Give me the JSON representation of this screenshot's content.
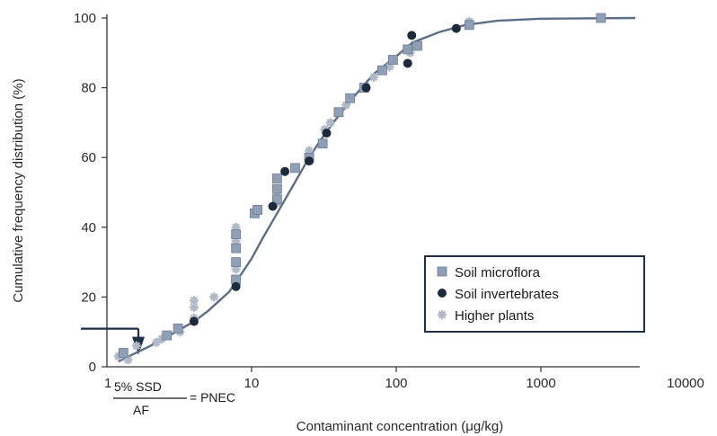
{
  "chart_data": {
    "type": "scatter",
    "xlabel": "Contaminant concentration (μg/kg)",
    "ylabel": "Cumulative frequency distribution (%)",
    "x_scale": "log",
    "xlim": [
      1,
      10000
    ],
    "ylim": [
      0,
      100
    ],
    "x_ticks": [
      {
        "value": 1,
        "label": "1"
      },
      {
        "value": 10,
        "label": "10"
      },
      {
        "value": 100,
        "label": "100"
      },
      {
        "value": 1000,
        "label": "1000"
      },
      {
        "value": 10000,
        "label": "10000"
      }
    ],
    "y_ticks": [
      {
        "value": 0,
        "label": "0"
      },
      {
        "value": 20,
        "label": "20"
      },
      {
        "value": 40,
        "label": "40"
      },
      {
        "value": 60,
        "label": "60"
      },
      {
        "value": 80,
        "label": "80"
      },
      {
        "value": 100,
        "label": "100"
      }
    ],
    "grid": false,
    "legend_position": "bottom-right",
    "series": [
      {
        "name": "Soil microflora",
        "marker": "square",
        "color": "#8fa0b6",
        "points": [
          [
            1.3,
            4
          ],
          [
            2.6,
            9
          ],
          [
            3.1,
            11
          ],
          [
            7.8,
            25
          ],
          [
            7.8,
            30
          ],
          [
            7.8,
            34
          ],
          [
            7.8,
            38
          ],
          [
            10.5,
            44
          ],
          [
            11,
            45
          ],
          [
            15,
            48
          ],
          [
            15,
            51
          ],
          [
            15,
            54
          ],
          [
            20,
            57
          ],
          [
            25,
            60
          ],
          [
            31,
            64
          ],
          [
            40,
            73
          ],
          [
            48,
            77
          ],
          [
            60,
            80
          ],
          [
            80,
            85
          ],
          [
            95,
            88
          ],
          [
            120,
            91
          ],
          [
            140,
            92
          ],
          [
            320,
            98
          ],
          [
            2600,
            100
          ]
        ]
      },
      {
        "name": "Soil invertebrates",
        "marker": "circle",
        "color": "#1c2b3c",
        "points": [
          [
            4,
            13
          ],
          [
            7.8,
            23
          ],
          [
            14,
            46
          ],
          [
            17,
            56
          ],
          [
            25,
            59
          ],
          [
            33,
            67
          ],
          [
            62,
            80
          ],
          [
            120,
            87
          ],
          [
            128,
            95
          ],
          [
            260,
            97
          ]
        ]
      },
      {
        "name": "Higher plants",
        "marker": "cross",
        "color": "#b0bac6",
        "points": [
          [
            1.2,
            3
          ],
          [
            1.4,
            2
          ],
          [
            1.6,
            6
          ],
          [
            2.2,
            7
          ],
          [
            2.4,
            8
          ],
          [
            3.2,
            10
          ],
          [
            4,
            14
          ],
          [
            4,
            17
          ],
          [
            4,
            19
          ],
          [
            5.5,
            20
          ],
          [
            7.8,
            40
          ],
          [
            7.8,
            36
          ],
          [
            7.8,
            28
          ],
          [
            15,
            47
          ],
          [
            15,
            50
          ],
          [
            25,
            62
          ],
          [
            32,
            68
          ],
          [
            35,
            70
          ],
          [
            45,
            75
          ],
          [
            70,
            83
          ],
          [
            90,
            86
          ],
          [
            125,
            90
          ],
          [
            320,
            99
          ]
        ]
      }
    ],
    "fit_curve": {
      "color": "#5c6f86",
      "points": [
        [
          1.2,
          1.5
        ],
        [
          1.5,
          3.5
        ],
        [
          2,
          6
        ],
        [
          3,
          10
        ],
        [
          4,
          13
        ],
        [
          5,
          16
        ],
        [
          6,
          19
        ],
        [
          7,
          21.5
        ],
        [
          8,
          25
        ],
        [
          10,
          31
        ],
        [
          12,
          37
        ],
        [
          15,
          44
        ],
        [
          20,
          53
        ],
        [
          25,
          60
        ],
        [
          30,
          65
        ],
        [
          40,
          72
        ],
        [
          50,
          77
        ],
        [
          70,
          84
        ],
        [
          100,
          89
        ],
        [
          130,
          93
        ],
        [
          200,
          96
        ],
        [
          300,
          98
        ],
        [
          500,
          99.2
        ],
        [
          1000,
          99.8
        ],
        [
          4500,
          100
        ]
      ]
    },
    "hazard_marker": {
      "x": 1.65,
      "y": 5.5
    },
    "annotation": {
      "numerator": "5% SSD",
      "denominator": "AF",
      "suffix": "= PNEC"
    }
  }
}
